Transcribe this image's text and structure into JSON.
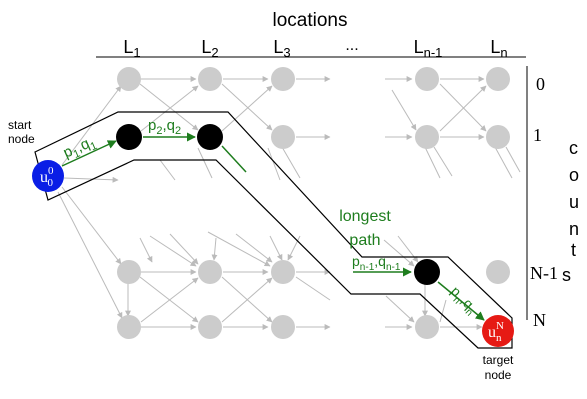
{
  "header": {
    "title": "locations"
  },
  "columns": [
    {
      "base": "L",
      "sub": "1"
    },
    {
      "base": "L",
      "sub": "2"
    },
    {
      "base": "L",
      "sub": "3"
    },
    {
      "base": "...",
      "sub": ""
    },
    {
      "base": "L",
      "sub": "n-1"
    },
    {
      "base": "L",
      "sub": "n"
    }
  ],
  "counts": [
    "0",
    "1",
    "N-1",
    "N"
  ],
  "side_letters": [
    "c",
    "o",
    "u",
    "n",
    "t",
    "s"
  ],
  "start_node": {
    "line1": "start",
    "line2": "node",
    "token": "u",
    "sup": "0",
    "sub": "0",
    "color": "#0a1ee6"
  },
  "target_node": {
    "line1": "target",
    "line2": "node",
    "token": "u",
    "sup": "N",
    "sub": "n",
    "color": "#e61a14"
  },
  "path_node_color": "#000000",
  "inactive_node_color": "#cccccc",
  "edge_labels": {
    "e1": {
      "p": "p",
      "ps": "1",
      "q": "q",
      "qs": "1"
    },
    "e2": {
      "p": "p",
      "ps": "2",
      "q": "q",
      "qs": "2"
    },
    "e3": {
      "p": "p",
      "ps": "n-1",
      "q": "q",
      "qs": "n-1"
    },
    "e4": {
      "p": "p",
      "ps": "n",
      "q": "q",
      "qs": "n"
    }
  },
  "longest_path": {
    "line1": "longest",
    "line2": "path",
    "color": "#1e7d1e"
  },
  "ellipsis": "..."
}
